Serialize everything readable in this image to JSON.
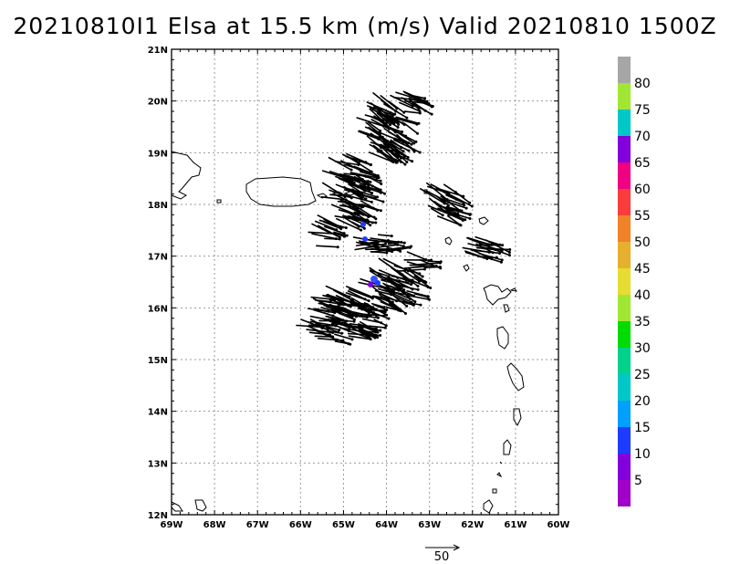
{
  "title": "20210810I1 Elsa at 15.5 km (m/s) Valid 20210810  1500Z",
  "map": {
    "lon_range": [
      -69,
      -60
    ],
    "lat_range": [
      12,
      21
    ],
    "lon_ticks": [
      "69W",
      "68W",
      "67W",
      "66W",
      "65W",
      "64W",
      "63W",
      "62W",
      "61W",
      "60W"
    ],
    "lat_ticks": [
      "21N",
      "20N",
      "19N",
      "18N",
      "17N",
      "16N",
      "15N",
      "14N",
      "13N",
      "12N"
    ],
    "grid": true
  },
  "colorbar": {
    "labels": [
      "80",
      "75",
      "70",
      "65",
      "60",
      "55",
      "50",
      "45",
      "40",
      "35",
      "30",
      "25",
      "20",
      "15",
      "10",
      "5"
    ],
    "colors": [
      "#a6a6a6",
      "#a0e632",
      "#00c8c8",
      "#8200dc",
      "#f00082",
      "#fa3c3c",
      "#f08228",
      "#e6af2d",
      "#e6dc32",
      "#a0e632",
      "#00dc00",
      "#00d28c",
      "#00c8c8",
      "#00a0ff",
      "#1e3cff",
      "#8200dc",
      "#a000c8"
    ]
  },
  "reference_vector": {
    "label": "50"
  }
}
